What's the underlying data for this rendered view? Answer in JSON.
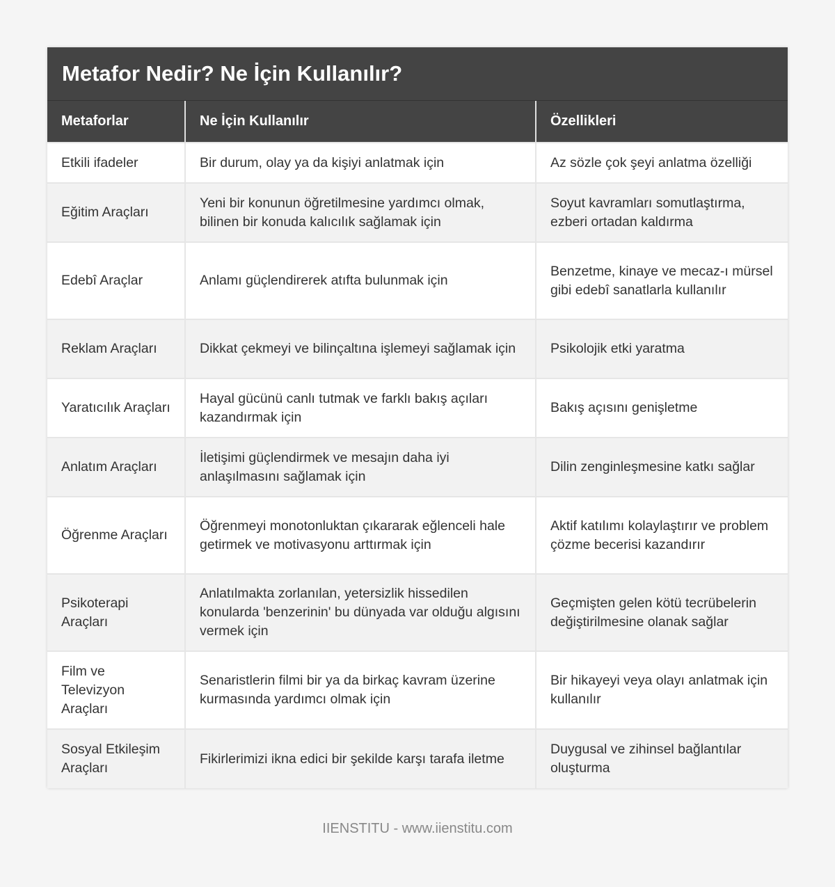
{
  "title": "Metafor Nedir? Ne İçin Kullanılır?",
  "columns": [
    "Metaforlar",
    "Ne İçin Kullanılır",
    "Özellikleri"
  ],
  "rows": [
    [
      "Etkili ifadeler",
      "Bir durum, olay ya da kişiyi anlatmak için",
      "Az sözle çok şeyi anlatma özelliği"
    ],
    [
      "Eğitim Araçları",
      "Yeni bir konunun öğretilmesine yardımcı olmak, bilinen bir konuda kalıcılık sağlamak için",
      "Soyut kavramları somutlaştırma, ezberi ortadan kaldırma"
    ],
    [
      "Edebî Araçlar",
      "Anlamı güçlendirerek atıfta bulunmak için",
      "Benzetme, kinaye ve mecaz-ı mürsel gibi edebî sanatlarla kullanılır"
    ],
    [
      "Reklam Araçları",
      "Dikkat çekmeyi ve bilinçaltına işlemeyi sağlamak için",
      "Psikolojik etki yaratma"
    ],
    [
      "Yaratıcılık Araçları",
      "Hayal gücünü canlı tutmak ve farklı bakış açıları kazandırmak için",
      "Bakış açısını genişletme"
    ],
    [
      "Anlatım Araçları",
      "İletişimi güçlendirmek ve mesajın daha iyi anlaşılmasını sağlamak için",
      "Dilin zenginleşmesine katkı sağlar"
    ],
    [
      "Öğrenme Araçları",
      "Öğrenmeyi monotonluktan çıkararak eğlenceli hale getirmek ve motivasyonu arttırmak için",
      "Aktif katılımı kolaylaştırır ve problem çözme becerisi kazandırır"
    ],
    [
      "Psikoterapi Araçları",
      "Anlatılmakta zorlanılan, yetersizlik hissedilen konularda 'benzerinin' bu dünyada var olduğu algısını vermek için",
      "Geçmişten gelen kötü tecrübelerin değiştirilmesine olanak sağlar"
    ],
    [
      "Film ve Televizyon Araçları",
      "Senaristlerin filmi bir ya da birkaç kavram üzerine kurmasında yardımcı olmak için",
      "Bir hikayeyi veya olayı anlatmak için kullanılır"
    ],
    [
      "Sosyal Etkileşim Araçları",
      "Fikirlerimizi ikna edici bir şekilde karşı tarafa iletme",
      "Duygusal ve zihinsel bağlantılar oluşturma"
    ]
  ],
  "footer": "IIENSTITU - www.iienstitu.com"
}
